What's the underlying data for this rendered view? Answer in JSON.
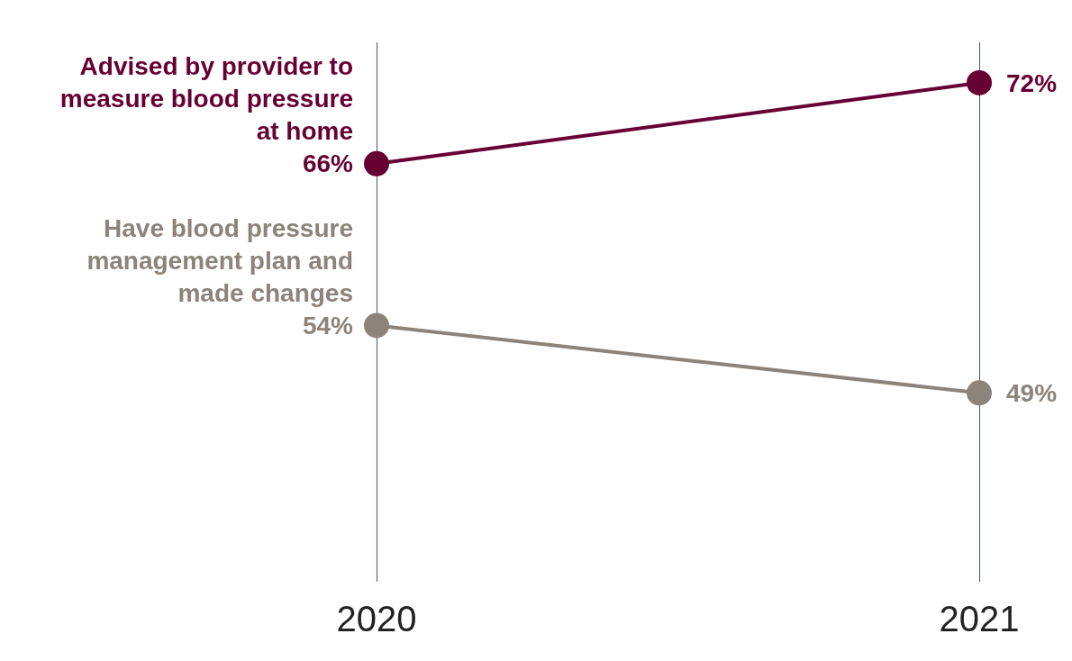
{
  "chart_data": {
    "type": "line",
    "categories": [
      "2020",
      "2021"
    ],
    "series": [
      {
        "name": "Advised by provider to measure blood pressure at home",
        "color": "#660033",
        "values": [
          66,
          72
        ],
        "value_labels": [
          "66%",
          "72%"
        ]
      },
      {
        "name": "Have blood pressure management plan and made changes",
        "color": "#8c837a",
        "values": [
          54,
          49
        ],
        "value_labels": [
          "54%",
          "49%"
        ]
      }
    ],
    "grid": "x",
    "legend": false,
    "marker": "circle",
    "line_style": "solid"
  }
}
